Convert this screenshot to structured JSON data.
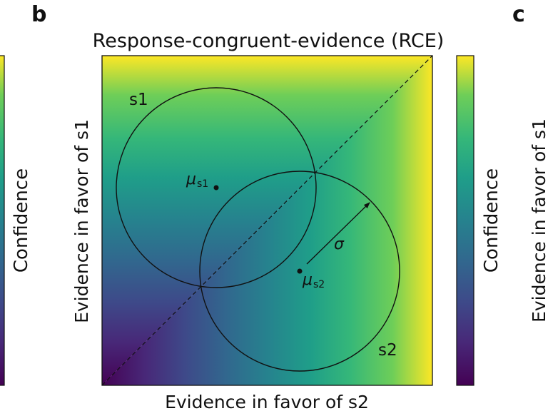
{
  "panels": {
    "left_letter": "",
    "center_letter": "b",
    "right_letter": "c"
  },
  "plot": {
    "title": "Response-congruent-evidence (RCE)",
    "xlabel": "Evidence in favor of s2",
    "ylabel": "Evidence in favor of s1",
    "s1_label": "s1",
    "s2_label": "s2",
    "mu_s1_symbol": "μ",
    "mu_s1_subscript": "s1",
    "mu_s2_symbol": "μ",
    "mu_s2_subscript": "s2",
    "sigma_label": "σ"
  },
  "colorbars": {
    "left_label": "Confidence",
    "center_label": "Confidence",
    "right_ylabel": "Evidence in favor of s1"
  },
  "colors": {
    "viridis_low": "#440154",
    "viridis_mid": "#21918c",
    "viridis_high": "#fde725",
    "line": "#111111"
  }
}
